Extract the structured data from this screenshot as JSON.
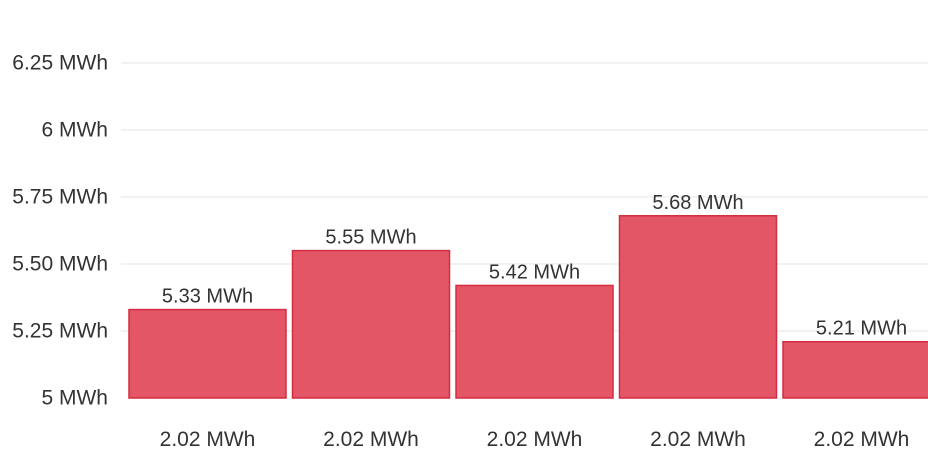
{
  "chart_data": {
    "type": "bar",
    "categories": [
      "2.02 MWh",
      "2.02 MWh",
      "2.02 MWh",
      "2.02 MWh",
      "2.02 MWh"
    ],
    "values": [
      5.33,
      5.55,
      5.42,
      5.68,
      5.21
    ],
    "data_labels": [
      "5.33 MWh",
      "5.55 MWh",
      "5.42 MWh",
      "5.68 MWh",
      "5.21 MWh"
    ],
    "y_ticks": [
      5,
      5.25,
      5.5,
      5.75,
      6,
      6.25
    ],
    "y_tick_labels": [
      "5 MWh",
      "5.25 MWh",
      "5.50 MWh",
      "5.75 MWh",
      "6 MWh",
      "6.25 MWh"
    ],
    "ylim": [
      5,
      6.25
    ],
    "title": "",
    "xlabel": "",
    "ylabel": "",
    "grid": true,
    "legend": "none",
    "colors": {
      "bar_fill": "#e35666",
      "bar_stroke": "#d42c42",
      "grid": "#e6e6e6",
      "text": "#333333"
    }
  }
}
